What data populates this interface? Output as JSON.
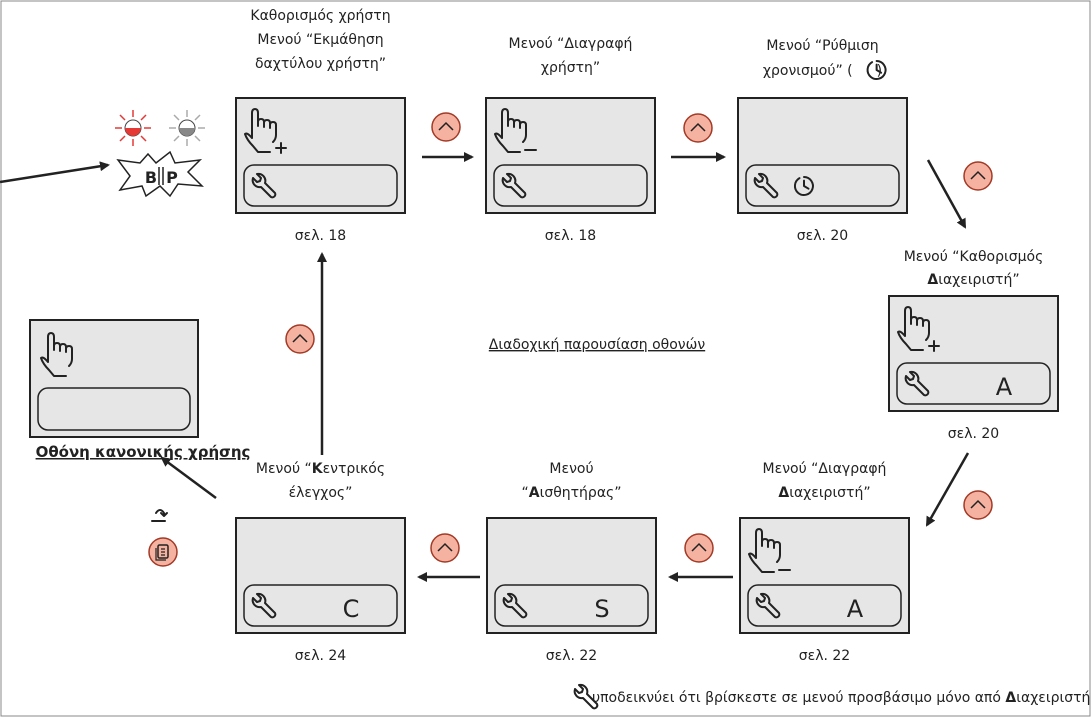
{
  "screens": [
    {
      "caption": [
        [
          "Καθορισμός χρήστη"
        ],
        [
          "Μενού “Εκμάθηση"
        ],
        [
          "δαχτύλου χρήστη”"
        ]
      ],
      "page": "σελ. 18"
    },
    {
      "caption": [
        [
          "Μενού “Διαγραφή"
        ],
        [
          "χρήστη”"
        ]
      ],
      "page": "σελ. 18"
    },
    {
      "caption": [
        [
          "Μενού “Ρύθμιση"
        ],
        [
          "χρονισμού” (",
          ")"
        ]
      ],
      "page": "σελ. 20"
    },
    {
      "caption": [
        [
          "Μενού “Καθορισμός"
        ],
        [
          {
            "bold": "Δ"
          },
          "ιαχειριστή”"
        ]
      ],
      "page": "σελ. 20",
      "letter": "A"
    },
    {
      "caption": [
        [
          "Μενού “Διαγραφή"
        ],
        [
          {
            "bold": "Δ"
          },
          "ιαχειριστή”"
        ]
      ],
      "page": "σελ. 22",
      "letter": "A"
    },
    {
      "caption": [
        [
          "Μενού"
        ],
        [
          "“",
          {
            "bold": "Α"
          },
          "ισθητήρας”"
        ]
      ],
      "page": "σελ. 22",
      "letter": "S"
    },
    {
      "caption": [
        [
          "Μενού “",
          {
            "bold": "Κ"
          },
          "εντρικός"
        ],
        [
          "έλεγχος”"
        ]
      ],
      "page": "σελ. 24",
      "letter": "C"
    }
  ],
  "normal_screen_label": "Οθόνη κανονικής χρήσης",
  "sequence_title": "Διαδοχική παρουσίαση οθονών",
  "beep": [
    "B",
    "P"
  ],
  "footnote": [
    "υποδεικνύει ότι βρίσκεστε σε μενού προσβάσιμο μόνο από ",
    {
      "bold": "Δ"
    },
    "ιαχειριστή"
  ]
}
